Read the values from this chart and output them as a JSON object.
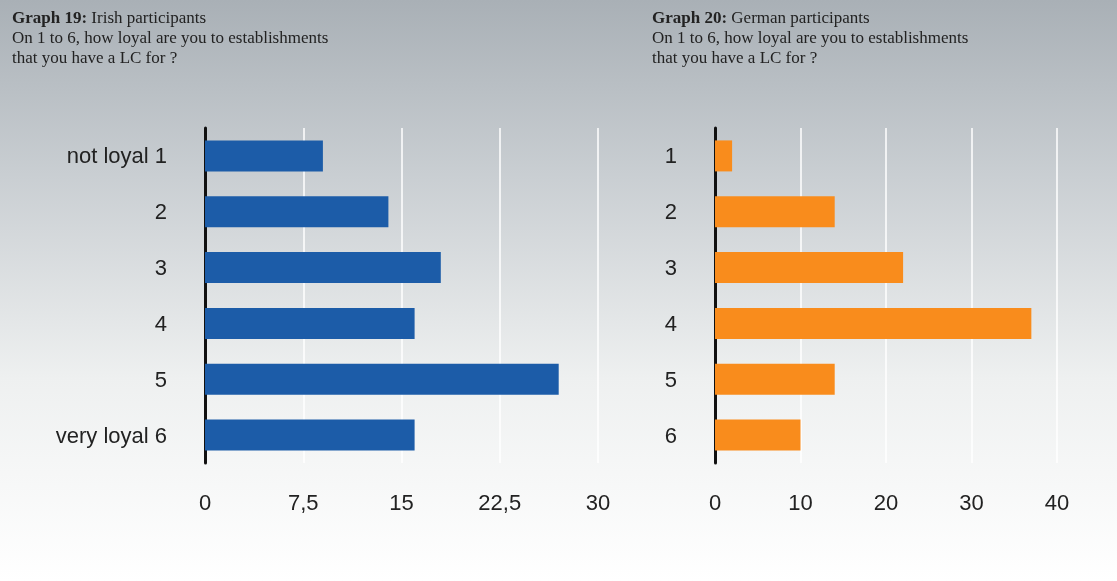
{
  "chart_data": [
    {
      "type": "bar",
      "orientation": "horizontal",
      "title": "Graph 19: Irish participants",
      "subtitle": "On 1 to 6, how loyal are you to establishments that you have a LC for ?",
      "categories": [
        "not loyal 1",
        "2",
        "3",
        "4",
        "5",
        "very loyal 6"
      ],
      "values": [
        9,
        14,
        18,
        16,
        27,
        16
      ],
      "color": "#1c5ca8",
      "xlim": [
        0,
        30
      ],
      "xticks": [
        0,
        {
          "value": 7.5,
          "label": "7,5"
        },
        15,
        {
          "value": 22.5,
          "label": "22,5"
        },
        30
      ],
      "grid": "x"
    },
    {
      "type": "bar",
      "orientation": "horizontal",
      "title": "Graph 20: German participants",
      "subtitle": "On 1 to 6, how loyal are you to establishments that you have a LC for ?",
      "categories": [
        "1",
        "2",
        "3",
        "4",
        "5",
        "6"
      ],
      "values": [
        2,
        14,
        22,
        37,
        14,
        10
      ],
      "color": "#f98c1c",
      "xlim": [
        0,
        40
      ],
      "xticks": [
        0,
        10,
        20,
        30,
        40
      ],
      "grid": "x"
    }
  ]
}
